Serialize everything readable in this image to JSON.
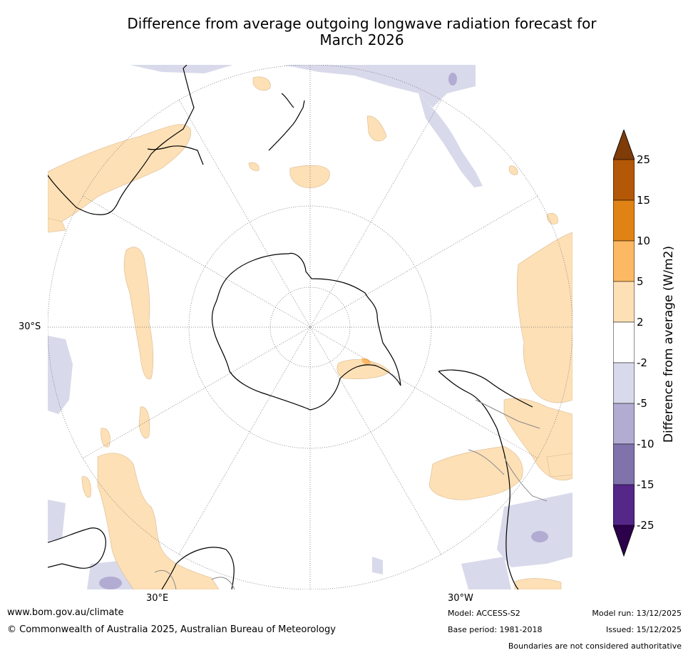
{
  "title_line1": "Difference from average outgoing longwave radiation forecast for",
  "title_line2": "March 2026",
  "map": {
    "lat_label": "30°S",
    "lon_labels": [
      "30°E",
      "30°W"
    ]
  },
  "colorbar": {
    "title": "Difference from average (W/m2)",
    "ticks": [
      "25",
      "15",
      "10",
      "5",
      "2",
      "-2",
      "-5",
      "-10",
      "-15",
      "-25"
    ],
    "colors": {
      "above_25": "#7f3b08",
      "c15_25": "#b35806",
      "c10_15": "#e08214",
      "c5_10": "#fdb863",
      "c2_5": "#fee0b6",
      "cm2_2": "#ffffff",
      "cm5_m2": "#d8daeb",
      "cm10_m5": "#b2abd2",
      "cm15_m10": "#8073ac",
      "cm25_m15": "#542788",
      "below_m25": "#2d004b"
    }
  },
  "footer": {
    "url": "www.bom.gov.au/climate",
    "copyright": "© Commonwealth of Australia 2025, Australian Bureau of Meteorology",
    "model": "Model: ACCESS-S2",
    "base_period": "Base period: 1981-2018",
    "model_run": "Model run: 13/12/2025",
    "issued": "Issued: 15/12/2025",
    "disclaimer": "Boundaries are not considered authoritative"
  }
}
